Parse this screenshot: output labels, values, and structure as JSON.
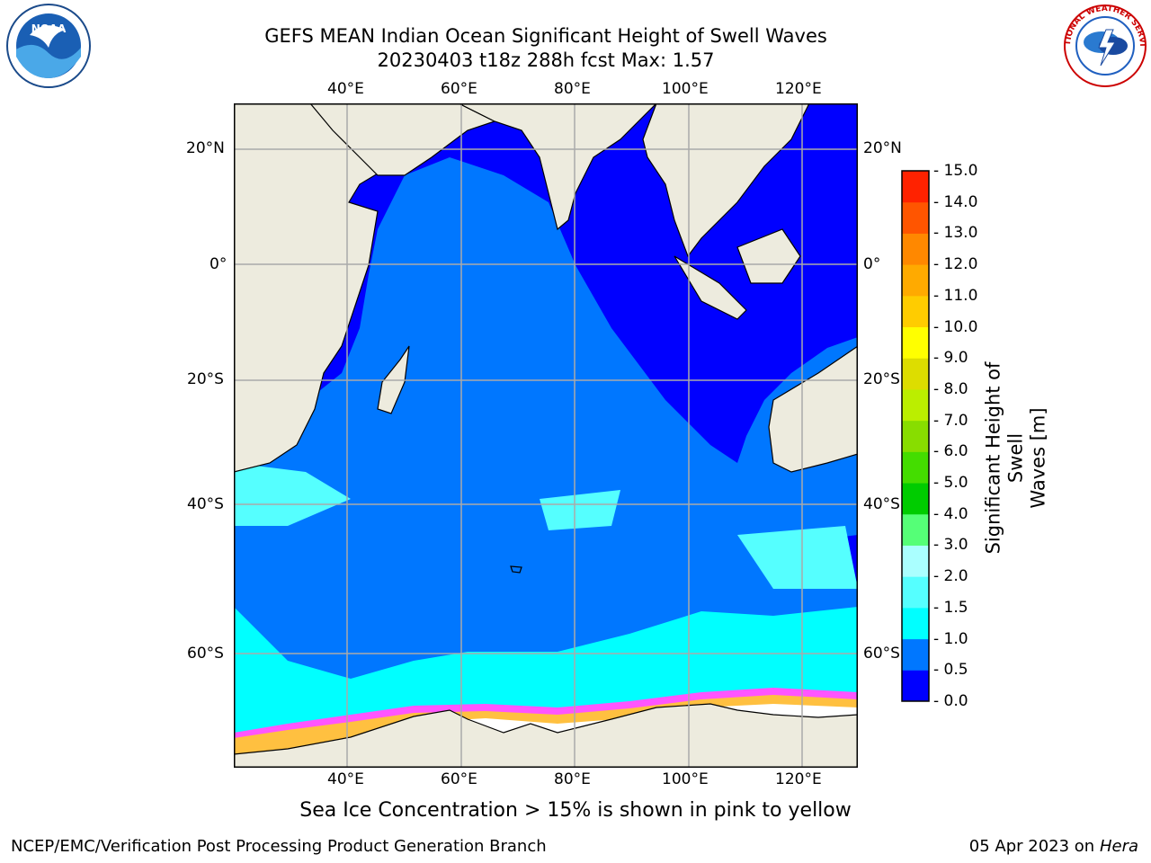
{
  "title": {
    "line1": "GEFS MEAN Indian Ocean Significant Height of Swell Waves",
    "line2": "20230403 t18z 288h fcst   Max: 1.57"
  },
  "logos": {
    "left": "NOAA",
    "right": "NATIONAL WEATHER SERVICE"
  },
  "map": {
    "lon_labels": [
      "40°E",
      "60°E",
      "80°E",
      "100°E",
      "120°E"
    ],
    "lat_labels": [
      "20°N",
      "0°",
      "20°S",
      "40°S",
      "60°S"
    ],
    "colors": {
      "land": "#edebde",
      "ocean_deep": "#0000ff",
      "ocean_main": "#0077ff",
      "cyan": "#00ffff",
      "light_cyan": "#55ffff",
      "ice": "#ffffff",
      "ice_pink": "#ff55ff",
      "ice_orange": "#ffc040"
    }
  },
  "colorbar": {
    "title_line1": "Significant Height of Swell",
    "title_line2": "Waves [m]",
    "labels": [
      "15.0",
      "14.0",
      "13.0",
      "12.0",
      "11.0",
      "10.0",
      "9.0",
      "8.0",
      "7.0",
      "6.0",
      "5.0",
      "4.0",
      "3.0",
      "2.0",
      "1.5",
      "1.0",
      "0.5",
      "0.0"
    ],
    "colors": [
      "#0000ff",
      "#0077ff",
      "#00ffff",
      "#55ffff",
      "#aaffff",
      "#55ff77",
      "#00cc00",
      "#44dd00",
      "#88dd00",
      "#bbee00",
      "#dddd00",
      "#ffff00",
      "#ffcc00",
      "#ffaa00",
      "#ff8800",
      "#ff5500",
      "#ff2200"
    ]
  },
  "caption": "Sea Ice Concentration > 15% is shown in pink to yellow",
  "footer": {
    "left": "NCEP/EMC/Verification Post Processing Product Generation Branch",
    "right_prefix": "05 Apr 2023 on ",
    "right_italic": "Hera"
  }
}
